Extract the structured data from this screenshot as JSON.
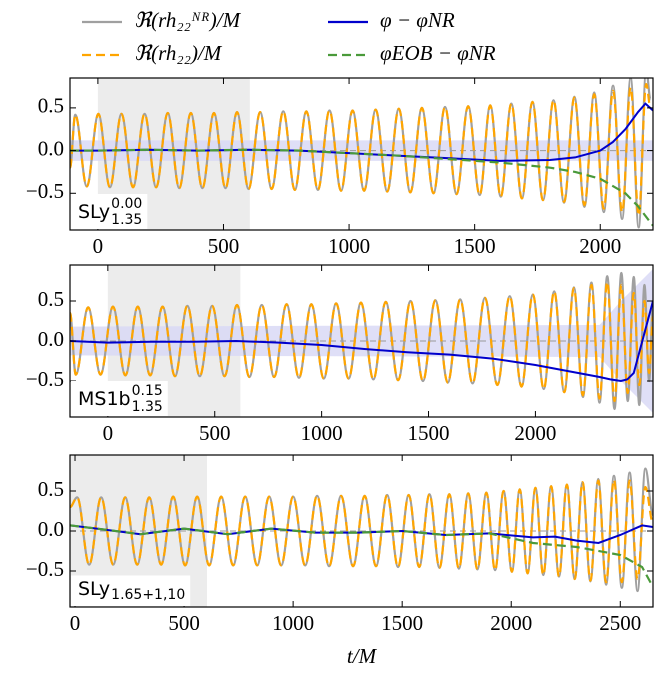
{
  "chart_data": [
    {
      "type": "line",
      "legend": "upper center",
      "xlim": [
        -111,
        2210
      ],
      "ylim": [
        -0.93,
        0.85
      ],
      "xticks": [
        0,
        500,
        1000,
        1500,
        2000
      ],
      "yticks": [
        0.5,
        {
          "value": 0,
          "label": "0.0"
        },
        {
          "value": -0.5,
          "label": "−0.5"
        }
      ],
      "label": {
        "name": "SLy",
        "sub": "1.35",
        "sup": "0.00"
      },
      "nr_region": [
        0,
        605
      ],
      "zero_line": true,
      "band": {
        "color": "#d9d9f6",
        "x": [
          -111,
          2210
        ],
        "lower": [
          -0.12,
          -0.12
        ],
        "upper": [
          0.12,
          0.12
        ]
      },
      "series": [
        {
          "name": "ℜ(rh₂₂ᴺᴿ)/M",
          "color": "#a0a0a0",
          "dash": "solid",
          "smooth": true,
          "x": [
            -111,
            -90,
            -44,
            2,
            48,
            94,
            140,
            186,
            232,
            278,
            324,
            370,
            416,
            462,
            508,
            554,
            600,
            646,
            692,
            738,
            784,
            830,
            876,
            922,
            968,
            1014,
            1060,
            1106,
            1152,
            1198,
            1244,
            1290,
            1336,
            1382,
            1428,
            1474,
            1520,
            1562,
            1604,
            1646,
            1688,
            1730,
            1772,
            1814,
            1856,
            1897,
            1937,
            1976,
            2014,
            2051,
            2087,
            2121,
            2153,
            2183,
            2200
          ],
          "values": [
            -0.2,
            0.42,
            -0.42,
            0.43,
            -0.43,
            0.43,
            -0.43,
            0.43,
            -0.43,
            0.44,
            -0.44,
            0.44,
            -0.44,
            0.44,
            -0.44,
            0.45,
            -0.45,
            0.45,
            -0.45,
            0.46,
            -0.46,
            0.46,
            -0.46,
            0.47,
            -0.47,
            0.47,
            -0.47,
            0.48,
            -0.48,
            0.49,
            -0.49,
            0.5,
            -0.5,
            0.51,
            -0.51,
            0.52,
            -0.52,
            0.53,
            -0.54,
            0.55,
            -0.56,
            0.57,
            -0.58,
            0.59,
            -0.61,
            0.63,
            -0.66,
            0.68,
            -0.72,
            0.76,
            -0.8,
            0.85,
            -0.9,
            0.95,
            0.6
          ]
        },
        {
          "name": "ℜ(rh₂₂)/M",
          "color": "#ffa500",
          "dash": "dashed",
          "smooth": true,
          "x": [
            -111,
            -90,
            -44,
            2,
            48,
            94,
            140,
            186,
            232,
            278,
            324,
            370,
            416,
            462,
            508,
            554,
            600,
            646,
            692,
            738,
            784,
            830,
            876,
            922,
            968,
            1014,
            1060,
            1106,
            1152,
            1198,
            1244,
            1290,
            1336,
            1382,
            1428,
            1474,
            1520,
            1562,
            1604,
            1646,
            1688,
            1730,
            1772,
            1814,
            1856,
            1897,
            1937,
            1976,
            2014,
            2051,
            2087,
            2121,
            2153,
            2183,
            2200
          ],
          "values": [
            -0.2,
            0.42,
            -0.42,
            0.43,
            -0.43,
            0.43,
            -0.43,
            0.43,
            -0.43,
            0.44,
            -0.44,
            0.44,
            -0.44,
            0.44,
            -0.44,
            0.45,
            -0.45,
            0.45,
            -0.45,
            0.46,
            -0.46,
            0.46,
            -0.46,
            0.47,
            -0.47,
            0.47,
            -0.47,
            0.48,
            -0.48,
            0.49,
            -0.49,
            0.5,
            -0.5,
            0.51,
            -0.51,
            0.52,
            -0.52,
            0.53,
            -0.54,
            0.55,
            -0.56,
            0.57,
            -0.58,
            0.59,
            -0.6,
            0.62,
            -0.64,
            0.66,
            -0.68,
            0.7,
            -0.72,
            0.74,
            -0.76,
            0.78,
            0.5
          ]
        },
        {
          "name": "φ − φNR",
          "color": "#0000cc",
          "dash": "solid",
          "smooth": false,
          "x": [
            -111,
            0,
            200,
            400,
            600,
            800,
            1000,
            1200,
            1400,
            1600,
            1800,
            1900,
            2000,
            2050,
            2100,
            2150,
            2180,
            2210
          ],
          "values": [
            0.0,
            0.0,
            0.01,
            0.0,
            0.01,
            0.0,
            -0.03,
            -0.06,
            -0.09,
            -0.12,
            -0.11,
            -0.08,
            0.0,
            0.1,
            0.25,
            0.45,
            0.55,
            0.47
          ]
        },
        {
          "name": "φEOB − φNR",
          "color": "#4a9a3a",
          "dash": "dashed",
          "smooth": false,
          "x": [
            -111,
            0,
            200,
            400,
            600,
            800,
            1000,
            1200,
            1400,
            1600,
            1800,
            1900,
            2000,
            2100,
            2150,
            2210
          ],
          "values": [
            0.0,
            0.0,
            0.01,
            0.0,
            0.01,
            0.0,
            -0.03,
            -0.06,
            -0.1,
            -0.14,
            -0.2,
            -0.25,
            -0.33,
            -0.5,
            -0.65,
            -0.88
          ]
        }
      ]
    },
    {
      "type": "line",
      "xlim": [
        -177,
        2550
      ],
      "ylim": [
        -0.95,
        0.95
      ],
      "xticks": [
        0,
        500,
        1000,
        1500,
        2000
      ],
      "yticks": [
        0.5,
        {
          "value": 0,
          "label": "0.0"
        },
        {
          "value": -0.5,
          "label": "−0.5"
        }
      ],
      "label": {
        "name": "MS1b",
        "sub": "1.35",
        "sup": "0.15"
      },
      "nr_region": [
        0,
        620
      ],
      "zero_line": true,
      "band": {
        "color": "#d9d9f6",
        "x": [
          -177,
          2300,
          2400,
          2550
        ],
        "lower": [
          -0.18,
          -0.2,
          -0.5,
          -0.9
        ],
        "upper": [
          0.18,
          0.2,
          0.5,
          0.9
        ]
      },
      "series": [
        {
          "color": "#a0a0a0",
          "dash": "solid",
          "smooth": true,
          "x": [
            -177,
            -150,
            -92,
            -34,
            24,
            82,
            140,
            198,
            256,
            314,
            372,
            430,
            488,
            546,
            604,
            662,
            720,
            778,
            836,
            894,
            952,
            1010,
            1068,
            1126,
            1184,
            1242,
            1300,
            1358,
            1416,
            1474,
            1532,
            1590,
            1648,
            1706,
            1764,
            1822,
            1880,
            1935,
            1988,
            2039,
            2088,
            2135,
            2180,
            2222,
            2262,
            2300,
            2336,
            2370,
            2402,
            2432,
            2460,
            2486,
            2510,
            2532,
            2550
          ],
          "values": [
            0.35,
            -0.42,
            0.42,
            -0.42,
            0.43,
            -0.43,
            0.43,
            -0.43,
            0.43,
            -0.44,
            0.44,
            -0.44,
            0.44,
            -0.44,
            0.45,
            -0.45,
            0.45,
            -0.45,
            0.46,
            -0.46,
            0.46,
            -0.47,
            0.47,
            -0.47,
            0.48,
            -0.48,
            0.49,
            -0.49,
            0.5,
            -0.5,
            0.51,
            -0.52,
            0.52,
            -0.53,
            0.54,
            -0.55,
            0.56,
            -0.57,
            0.58,
            -0.6,
            0.62,
            -0.64,
            0.67,
            -0.7,
            0.73,
            -0.77,
            0.81,
            -0.85,
            0.85,
            -0.75,
            0.8,
            -0.8,
            0.7,
            -0.5,
            0.5
          ]
        },
        {
          "color": "#ffa500",
          "dash": "dashed",
          "smooth": true,
          "x": [
            -177,
            -150,
            -92,
            -34,
            24,
            82,
            140,
            198,
            256,
            314,
            372,
            430,
            488,
            546,
            604,
            662,
            720,
            778,
            836,
            894,
            952,
            1010,
            1068,
            1126,
            1184,
            1242,
            1300,
            1358,
            1416,
            1474,
            1532,
            1590,
            1648,
            1706,
            1764,
            1822,
            1880,
            1935,
            1988,
            2039,
            2088,
            2135,
            2180,
            2222,
            2262,
            2300,
            2336,
            2370,
            2402,
            2432,
            2460,
            2486,
            2510,
            2532,
            2550
          ],
          "values": [
            0.35,
            -0.42,
            0.42,
            -0.42,
            0.43,
            -0.43,
            0.43,
            -0.43,
            0.43,
            -0.44,
            0.44,
            -0.44,
            0.44,
            -0.44,
            0.45,
            -0.45,
            0.45,
            -0.45,
            0.46,
            -0.46,
            0.46,
            -0.47,
            0.47,
            -0.47,
            0.48,
            -0.48,
            0.49,
            -0.49,
            0.5,
            -0.5,
            0.51,
            -0.52,
            0.52,
            -0.53,
            0.54,
            -0.55,
            0.56,
            -0.57,
            0.58,
            -0.6,
            0.62,
            -0.64,
            0.66,
            -0.68,
            0.7,
            -0.72,
            0.74,
            -0.75,
            0.7,
            -0.65,
            0.6,
            -0.55,
            0.5,
            -0.4,
            0.3
          ]
        },
        {
          "color": "#0000cc",
          "dash": "solid",
          "smooth": false,
          "x": [
            -177,
            0,
            200,
            400,
            600,
            800,
            1000,
            1200,
            1400,
            1600,
            1800,
            2000,
            2200,
            2300,
            2350,
            2400,
            2430,
            2460,
            2500,
            2550
          ],
          "values": [
            0.0,
            -0.02,
            -0.01,
            -0.01,
            0.0,
            -0.02,
            -0.05,
            -0.1,
            -0.14,
            -0.17,
            -0.22,
            -0.3,
            -0.4,
            -0.45,
            -0.48,
            -0.5,
            -0.48,
            -0.4,
            0.0,
            0.5
          ]
        }
      ]
    },
    {
      "type": "line",
      "xlim": [
        -23,
        2650
      ],
      "ylim": [
        -0.95,
        0.95
      ],
      "xlabel": "t/M",
      "xticks": [
        0,
        500,
        1000,
        1500,
        2000,
        2500
      ],
      "yticks": [
        0.5,
        {
          "value": 0,
          "label": "0.0"
        },
        {
          "value": -0.5,
          "label": "−0.5"
        }
      ],
      "label": {
        "name": "SLy",
        "sub": "1.65+1,10"
      },
      "nr_region": [
        -23,
        605
      ],
      "zero_line": true,
      "series": [
        {
          "color": "#a0a0a0",
          "dash": "solid",
          "smooth": true,
          "x": [
            -23,
            10,
            65,
            120,
            175,
            230,
            285,
            340,
            395,
            450,
            505,
            560,
            615,
            670,
            725,
            780,
            835,
            890,
            945,
            1000,
            1055,
            1110,
            1165,
            1220,
            1275,
            1328,
            1380,
            1431,
            1481,
            1530,
            1578,
            1625,
            1671,
            1716,
            1760,
            1803,
            1845,
            1886,
            1926,
            1965,
            2003,
            2039,
            2075,
            2111,
            2147,
            2183,
            2219,
            2255,
            2291,
            2327,
            2363,
            2399,
            2435,
            2471,
            2507,
            2543,
            2579,
            2615,
            2650
          ],
          "values": [
            0.3,
            0.42,
            -0.42,
            0.42,
            -0.42,
            0.42,
            -0.42,
            0.42,
            -0.42,
            0.43,
            -0.43,
            0.43,
            -0.43,
            0.43,
            -0.43,
            0.43,
            -0.43,
            0.43,
            -0.43,
            0.43,
            -0.43,
            0.44,
            -0.44,
            0.44,
            -0.44,
            0.44,
            -0.44,
            0.45,
            -0.45,
            0.45,
            -0.45,
            0.46,
            -0.46,
            0.46,
            -0.47,
            0.47,
            -0.48,
            0.48,
            -0.49,
            0.5,
            -0.51,
            0.52,
            -0.53,
            0.54,
            -0.55,
            0.56,
            -0.57,
            0.58,
            -0.6,
            0.61,
            -0.63,
            0.65,
            -0.67,
            0.69,
            -0.71,
            0.73,
            -0.75,
            0.78,
            0.2
          ]
        },
        {
          "color": "#ffa500",
          "dash": "dashed",
          "smooth": true,
          "x": [
            -23,
            10,
            65,
            120,
            175,
            230,
            285,
            340,
            395,
            450,
            505,
            560,
            615,
            670,
            725,
            780,
            835,
            890,
            945,
            1000,
            1055,
            1110,
            1165,
            1220,
            1275,
            1328,
            1380,
            1431,
            1481,
            1530,
            1578,
            1625,
            1671,
            1716,
            1760,
            1803,
            1845,
            1886,
            1926,
            1965,
            2003,
            2039,
            2075,
            2111,
            2147,
            2183,
            2219,
            2255,
            2291,
            2327,
            2363,
            2399,
            2435,
            2471,
            2507,
            2543,
            2579,
            2615,
            2650
          ],
          "values": [
            0.3,
            0.42,
            -0.42,
            0.42,
            -0.42,
            0.42,
            -0.42,
            0.42,
            -0.42,
            0.43,
            -0.43,
            0.43,
            -0.43,
            0.43,
            -0.43,
            0.43,
            -0.43,
            0.43,
            -0.43,
            0.43,
            -0.43,
            0.44,
            -0.44,
            0.44,
            -0.44,
            0.44,
            -0.44,
            0.45,
            -0.45,
            0.45,
            -0.45,
            0.46,
            -0.46,
            0.46,
            -0.47,
            0.47,
            -0.48,
            0.48,
            -0.49,
            0.5,
            -0.51,
            0.52,
            -0.53,
            0.54,
            -0.55,
            0.56,
            -0.57,
            0.58,
            -0.6,
            0.61,
            -0.62,
            0.63,
            -0.64,
            0.64,
            -0.64,
            0.63,
            -0.6,
            0.55,
            0.1
          ]
        },
        {
          "color": "#0000cc",
          "dash": "solid",
          "smooth": false,
          "x": [
            -23,
            100,
            300,
            500,
            700,
            900,
            1100,
            1300,
            1500,
            1700,
            1900,
            2100,
            2200,
            2300,
            2400,
            2500,
            2600,
            2650
          ],
          "values": [
            0.07,
            0.03,
            -0.04,
            0.03,
            -0.04,
            0.03,
            -0.02,
            -0.02,
            0.0,
            -0.05,
            -0.03,
            -0.08,
            -0.07,
            -0.12,
            -0.15,
            -0.05,
            0.07,
            0.05
          ]
        },
        {
          "color": "#4a9a3a",
          "dash": "dashed",
          "smooth": false,
          "x": [
            -23,
            100,
            300,
            500,
            700,
            900,
            1100,
            1300,
            1500,
            1700,
            1900,
            2100,
            2300,
            2500,
            2600,
            2650
          ],
          "values": [
            0.07,
            0.03,
            -0.04,
            0.03,
            -0.04,
            0.03,
            -0.02,
            -0.02,
            0.0,
            -0.05,
            -0.03,
            -0.15,
            -0.2,
            -0.3,
            -0.45,
            -0.7
          ]
        }
      ]
    }
  ]
}
